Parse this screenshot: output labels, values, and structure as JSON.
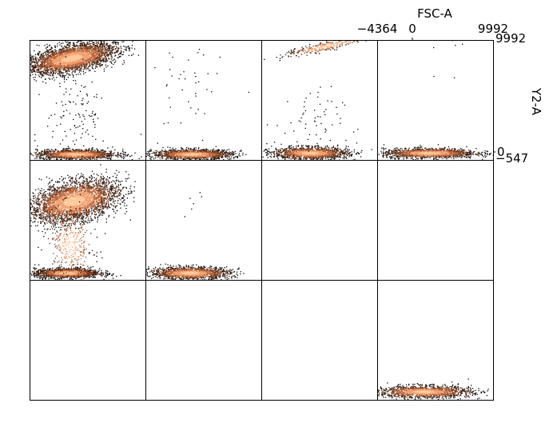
{
  "chart_data": {
    "type": "scatter",
    "layout": "grid",
    "rows": 3,
    "cols": 4,
    "x_axis": {
      "label": "FSC-A",
      "position": "top",
      "tick_labels": [
        "−4364",
        "0",
        "9992"
      ],
      "range": [
        -4364,
        9992
      ]
    },
    "y_axis": {
      "label": "Y2-A",
      "position": "right",
      "tick_labels": [
        "9992",
        "0",
        "−547"
      ],
      "range": [
        -547,
        9992
      ]
    },
    "colormap": [
      "#000000",
      "#3a1d0f",
      "#7a3f22",
      "#c0683a",
      "#f0a070",
      "#ffc89a"
    ],
    "panels": [
      {
        "row": 0,
        "col": 0,
        "clusters": [
          {
            "x": 0.36,
            "y": 0.85,
            "sx": 0.19,
            "sy": 0.055,
            "n": 3500,
            "tilt": 0.5
          },
          {
            "x": 0.4,
            "y": 0.05,
            "sx": 0.17,
            "sy": 0.02,
            "n": 1500,
            "tilt": 0
          },
          {
            "x": 0.4,
            "y": 0.4,
            "sx": 0.13,
            "sy": 0.2,
            "n": 120,
            "tilt": 0
          }
        ]
      },
      {
        "row": 0,
        "col": 1,
        "clusters": [
          {
            "x": 0.4,
            "y": 0.05,
            "sx": 0.17,
            "sy": 0.02,
            "n": 1500,
            "tilt": 0
          },
          {
            "x": 0.35,
            "y": 0.55,
            "sx": 0.15,
            "sy": 0.22,
            "n": 40,
            "tilt": 0
          }
        ]
      },
      {
        "row": 0,
        "col": 2,
        "clusters": [
          {
            "x": 0.42,
            "y": 0.06,
            "sx": 0.16,
            "sy": 0.025,
            "n": 1500,
            "tilt": 0
          },
          {
            "x": 0.55,
            "y": 0.95,
            "sx": 0.18,
            "sy": 0.02,
            "n": 300,
            "tilt": 0.6
          },
          {
            "x": 0.4,
            "y": 0.3,
            "sx": 0.15,
            "sy": 0.15,
            "n": 60,
            "tilt": 0
          }
        ]
      },
      {
        "row": 0,
        "col": 3,
        "clusters": [
          {
            "x": 0.45,
            "y": 0.06,
            "sx": 0.2,
            "sy": 0.02,
            "n": 1500,
            "tilt": 0
          },
          {
            "x": 0.6,
            "y": 0.8,
            "sx": 0.1,
            "sy": 0.1,
            "n": 6,
            "tilt": 0
          }
        ]
      },
      {
        "row": 1,
        "col": 0,
        "clusters": [
          {
            "x": 0.38,
            "y": 0.66,
            "sx": 0.19,
            "sy": 0.08,
            "n": 3500,
            "tilt": 0.5
          },
          {
            "x": 0.32,
            "y": 0.06,
            "sx": 0.14,
            "sy": 0.02,
            "n": 1500,
            "tilt": 0
          },
          {
            "x": 0.35,
            "y": 0.3,
            "sx": 0.1,
            "sy": 0.15,
            "n": 400,
            "tilt": 0
          }
        ]
      },
      {
        "row": 1,
        "col": 1,
        "clusters": [
          {
            "x": 0.38,
            "y": 0.06,
            "sx": 0.17,
            "sy": 0.025,
            "n": 1500,
            "tilt": 0
          },
          {
            "x": 0.42,
            "y": 0.65,
            "sx": 0.04,
            "sy": 0.06,
            "n": 6,
            "tilt": 0
          }
        ]
      },
      {
        "row": 1,
        "col": 2,
        "clusters": []
      },
      {
        "row": 1,
        "col": 3,
        "clusters": []
      },
      {
        "row": 2,
        "col": 0,
        "clusters": []
      },
      {
        "row": 2,
        "col": 1,
        "clusters": []
      },
      {
        "row": 2,
        "col": 2,
        "clusters": []
      },
      {
        "row": 2,
        "col": 3,
        "clusters": [
          {
            "x": 0.4,
            "y": 0.07,
            "sx": 0.2,
            "sy": 0.025,
            "n": 1500,
            "tilt": 0
          }
        ]
      }
    ]
  }
}
